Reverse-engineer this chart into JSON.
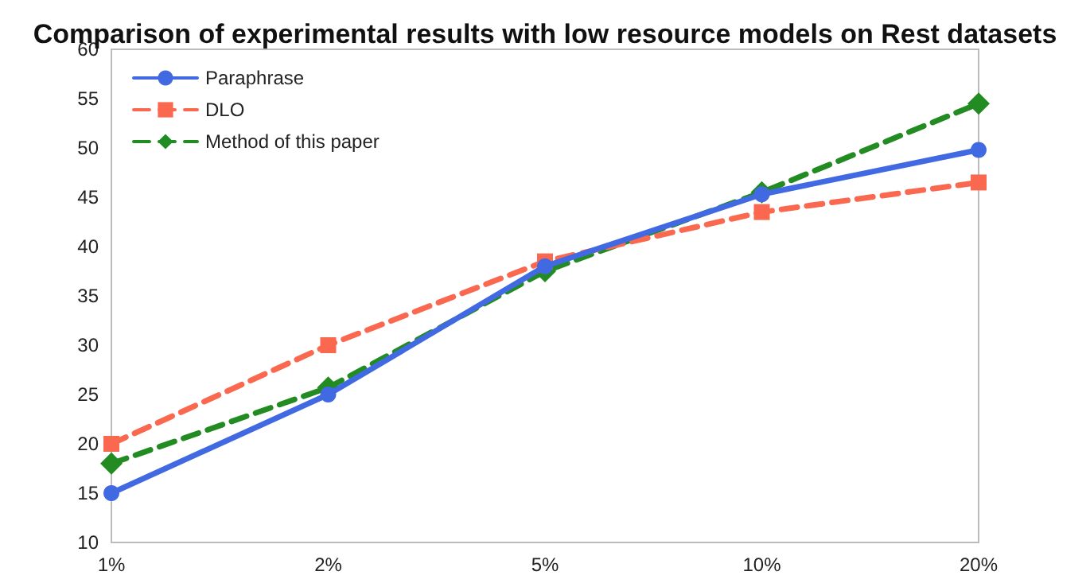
{
  "chart_data": {
    "type": "line",
    "title": "Comparison of experimental results with low resource models on Rest datasets",
    "categories": [
      "1%",
      "2%",
      "5%",
      "10%",
      "20%"
    ],
    "series": [
      {
        "name": "Paraphrase",
        "color": "#4169e1",
        "values": [
          15,
          25,
          38,
          45.3,
          49.8
        ],
        "marker": "circle",
        "line_style": "solid"
      },
      {
        "name": "DLO",
        "color": "#fa6850",
        "values": [
          20,
          30,
          38.5,
          43.5,
          46.5
        ],
        "marker": "square",
        "line_style": "dashed"
      },
      {
        "name": "Method of this paper",
        "color": "#228b22",
        "values": [
          18,
          25.7,
          37.5,
          45.5,
          54.5
        ],
        "marker": "diamond",
        "line_style": "dashed"
      }
    ],
    "ylim": [
      10,
      60
    ],
    "yticks": [
      10,
      15,
      20,
      25,
      30,
      35,
      40,
      45,
      50,
      55,
      60
    ],
    "grid": false,
    "legend": "top left"
  }
}
